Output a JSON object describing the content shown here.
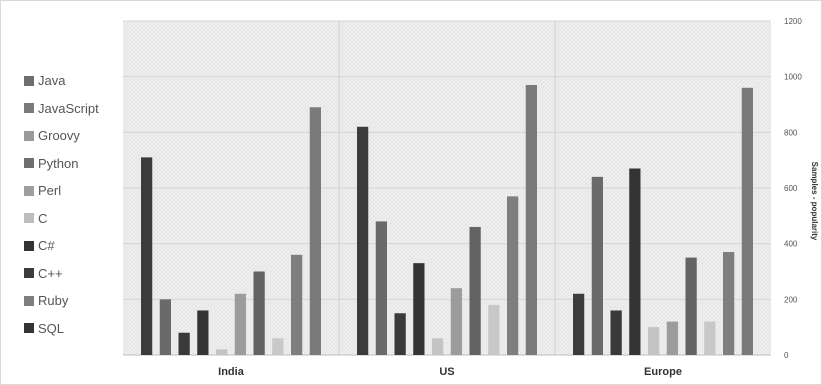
{
  "chart_data": {
    "type": "bar",
    "categories": [
      "India",
      "US",
      "Europe"
    ],
    "ylabel": "Samples - popularity",
    "ylim": [
      0,
      1200
    ],
    "yticks": [
      0,
      200,
      400,
      600,
      800,
      1000,
      1200
    ],
    "y_axis_side": "right",
    "grid": true,
    "legend_position": "left",
    "series": [
      {
        "name": "Java",
        "color": "#3b3b3b",
        "values": [
          710,
          820,
          220
        ]
      },
      {
        "name": "JavaScript",
        "color": "#6a6a6a",
        "values": [
          200,
          480,
          640
        ]
      },
      {
        "name": "Groovy",
        "color": "#3a3a3a",
        "values": [
          80,
          150,
          160
        ]
      },
      {
        "name": "Python",
        "color": "#343434",
        "values": [
          160,
          330,
          670
        ]
      },
      {
        "name": "Perl",
        "color": "#c4c4c4",
        "values": [
          20,
          60,
          100
        ]
      },
      {
        "name": "C",
        "color": "#9c9c9c",
        "values": [
          220,
          240,
          120
        ]
      },
      {
        "name": "C#",
        "color": "#636363",
        "values": [
          300,
          460,
          350
        ]
      },
      {
        "name": "C++",
        "color": "#c8c8c8",
        "values": [
          60,
          180,
          120
        ]
      },
      {
        "name": "Ruby",
        "color": "#7e7e7e",
        "values": [
          360,
          570,
          370
        ]
      },
      {
        "name": "SQL",
        "color": "#7a7a7a",
        "values": [
          890,
          970,
          960
        ]
      }
    ]
  },
  "legend_colors": [
    "#6e6e6e",
    "#7a7a7a",
    "#9a9a9a",
    "#6e6e6e",
    "#9e9e9e",
    "#bdbdbd",
    "#333333",
    "#3c3c3c",
    "#7e7e7e",
    "#333333"
  ]
}
